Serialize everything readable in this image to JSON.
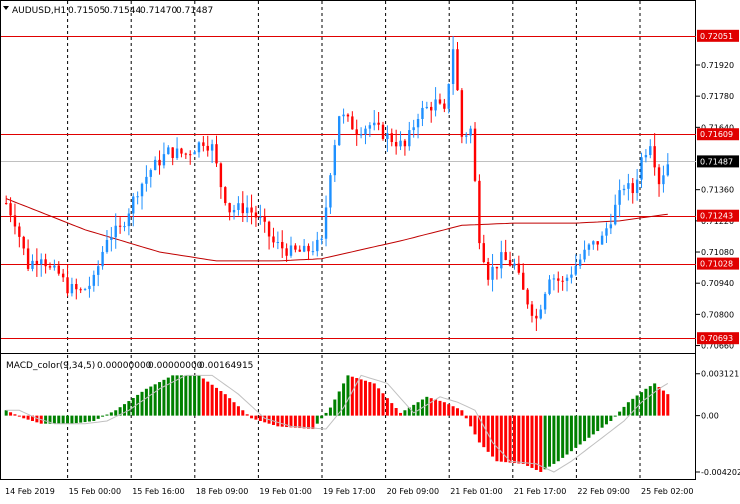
{
  "symbol_label": "AUDUSD,H1",
  "ohlc": {
    "open": "0.71505",
    "high": "0.71544",
    "low": "0.71470",
    "close": "0.71487"
  },
  "indicator": {
    "name": "MACD_color(9,34,5)",
    "v1": "0.00000000",
    "v2": "0.00000000",
    "v3": "0.00164915"
  },
  "price_axis": {
    "min": 0.7064,
    "max": 0.7214,
    "ticks": [
      {
        "value": 0.7192,
        "label": "0.71920"
      },
      {
        "value": 0.7178,
        "label": "0.71780"
      },
      {
        "value": 0.7164,
        "label": "0.71640"
      },
      {
        "value": 0.7136,
        "label": "0.71360"
      },
      {
        "value": 0.7122,
        "label": "0.71220"
      },
      {
        "value": 0.7108,
        "label": "0.71080"
      },
      {
        "value": 0.7094,
        "label": "0.70940"
      },
      {
        "value": 0.708,
        "label": "0.70800"
      },
      {
        "value": 0.7066,
        "label": "0.70660"
      }
    ]
  },
  "levels": [
    {
      "value": 0.72051,
      "label": "0.72051",
      "kind": "resistance"
    },
    {
      "value": 0.71609,
      "label": "0.71609",
      "kind": "resistance"
    },
    {
      "value": 0.71487,
      "label": "0.71487",
      "kind": "current"
    },
    {
      "value": 0.71243,
      "label": "0.71243",
      "kind": "support"
    },
    {
      "value": 0.71028,
      "label": "0.71028",
      "kind": "support"
    },
    {
      "value": 0.70693,
      "label": "0.70693",
      "kind": "support"
    }
  ],
  "macd_axis": {
    "min": -0.0045,
    "max": 0.0034,
    "ticks": [
      {
        "value": 0.003121,
        "label": "0.003121"
      },
      {
        "value": 0.0,
        "label": "0.00"
      },
      {
        "value": -0.004202,
        "label": "-0.004202"
      }
    ]
  },
  "time_labels": [
    "14 Feb 2019",
    "15 Feb 00:00",
    "15 Feb 16:00",
    "18 Feb 09:00",
    "19 Feb 01:00",
    "19 Feb 17:00",
    "20 Feb 09:00",
    "21 Feb 01:00",
    "21 Feb 17:00",
    "22 Feb 09:00",
    "25 Feb 02:00"
  ],
  "colors": {
    "bull": "#1e90ff",
    "bear": "#ff0000",
    "level_line": "#e00000",
    "ma_line": "#c00000",
    "macd_up": "#008000",
    "macd_down": "#ff0000",
    "grid": "#000000",
    "current_line": "#c0c0c0"
  },
  "chart_data": {
    "type": "candlestick",
    "moving_average_color": "#c00000",
    "close_path": [
      {
        "bar": 0,
        "price": 0.713
      },
      {
        "bar": 2,
        "price": 0.7122
      },
      {
        "bar": 5,
        "price": 0.7102
      },
      {
        "bar": 8,
        "price": 0.7107
      },
      {
        "bar": 10,
        "price": 0.71
      },
      {
        "bar": 12,
        "price": 0.7098
      },
      {
        "bar": 14,
        "price": 0.7092
      },
      {
        "bar": 17,
        "price": 0.709
      },
      {
        "bar": 20,
        "price": 0.7095
      },
      {
        "bar": 23,
        "price": 0.7115
      },
      {
        "bar": 26,
        "price": 0.7118
      },
      {
        "bar": 30,
        "price": 0.7136
      },
      {
        "bar": 33,
        "price": 0.7145
      },
      {
        "bar": 37,
        "price": 0.7153
      },
      {
        "bar": 41,
        "price": 0.7152
      },
      {
        "bar": 45,
        "price": 0.7158
      },
      {
        "bar": 47,
        "price": 0.7155
      },
      {
        "bar": 49,
        "price": 0.7138
      },
      {
        "bar": 51,
        "price": 0.7127
      },
      {
        "bar": 55,
        "price": 0.7128
      },
      {
        "bar": 58,
        "price": 0.7122
      },
      {
        "bar": 61,
        "price": 0.7112
      },
      {
        "bar": 65,
        "price": 0.7108
      },
      {
        "bar": 68,
        "price": 0.7108
      },
      {
        "bar": 70,
        "price": 0.711
      },
      {
        "bar": 72,
        "price": 0.7112
      },
      {
        "bar": 74,
        "price": 0.7145
      },
      {
        "bar": 76,
        "price": 0.717
      },
      {
        "bar": 80,
        "price": 0.7163
      },
      {
        "bar": 83,
        "price": 0.7165
      },
      {
        "bar": 87,
        "price": 0.716
      },
      {
        "bar": 91,
        "price": 0.7155
      },
      {
        "bar": 94,
        "price": 0.717
      },
      {
        "bar": 98,
        "price": 0.7175
      },
      {
        "bar": 100,
        "price": 0.717
      },
      {
        "bar": 102,
        "price": 0.72
      },
      {
        "bar": 104,
        "price": 0.716
      },
      {
        "bar": 106,
        "price": 0.7163
      },
      {
        "bar": 108,
        "price": 0.7115
      },
      {
        "bar": 110,
        "price": 0.7098
      },
      {
        "bar": 113,
        "price": 0.7105
      },
      {
        "bar": 116,
        "price": 0.7102
      },
      {
        "bar": 118,
        "price": 0.709
      },
      {
        "bar": 121,
        "price": 0.7078
      },
      {
        "bar": 124,
        "price": 0.7098
      },
      {
        "bar": 127,
        "price": 0.7094
      },
      {
        "bar": 130,
        "price": 0.7102
      },
      {
        "bar": 133,
        "price": 0.711
      },
      {
        "bar": 136,
        "price": 0.7114
      },
      {
        "bar": 139,
        "price": 0.7128
      },
      {
        "bar": 141,
        "price": 0.7138
      },
      {
        "bar": 143,
        "price": 0.7135
      },
      {
        "bar": 145,
        "price": 0.715
      },
      {
        "bar": 147,
        "price": 0.7158
      },
      {
        "bar": 149,
        "price": 0.714
      },
      {
        "bar": 151,
        "price": 0.7148
      }
    ],
    "moving_average": [
      {
        "bar": 0,
        "value": 0.7132
      },
      {
        "bar": 18,
        "value": 0.7118
      },
      {
        "bar": 35,
        "value": 0.7108
      },
      {
        "bar": 48,
        "value": 0.7104
      },
      {
        "bar": 62,
        "value": 0.7104
      },
      {
        "bar": 72,
        "value": 0.7105
      },
      {
        "bar": 90,
        "value": 0.7113
      },
      {
        "bar": 104,
        "value": 0.712
      },
      {
        "bar": 116,
        "value": 0.7121
      },
      {
        "bar": 130,
        "value": 0.7121
      },
      {
        "bar": 140,
        "value": 0.7122
      },
      {
        "bar": 151,
        "value": 0.7125
      }
    ],
    "macd_path": [
      {
        "bar": 0,
        "value": 0.0004
      },
      {
        "bar": 4,
        "value": -0.0002
      },
      {
        "bar": 8,
        "value": -0.0006
      },
      {
        "bar": 15,
        "value": -0.0006
      },
      {
        "bar": 20,
        "value": -0.0004
      },
      {
        "bar": 25,
        "value": 0.0004
      },
      {
        "bar": 32,
        "value": 0.002
      },
      {
        "bar": 38,
        "value": 0.003
      },
      {
        "bar": 44,
        "value": 0.003
      },
      {
        "bar": 50,
        "value": 0.0016
      },
      {
        "bar": 56,
        "value": -0.0002
      },
      {
        "bar": 62,
        "value": -0.0008
      },
      {
        "bar": 70,
        "value": -0.001
      },
      {
        "bar": 74,
        "value": 0.0006
      },
      {
        "bar": 78,
        "value": 0.003
      },
      {
        "bar": 84,
        "value": 0.0024
      },
      {
        "bar": 90,
        "value": 0.0002
      },
      {
        "bar": 96,
        "value": 0.0014
      },
      {
        "bar": 100,
        "value": 0.001
      },
      {
        "bar": 104,
        "value": 0.0004
      },
      {
        "bar": 108,
        "value": -0.002
      },
      {
        "bar": 112,
        "value": -0.0034
      },
      {
        "bar": 118,
        "value": -0.0036
      },
      {
        "bar": 122,
        "value": -0.0042
      },
      {
        "bar": 126,
        "value": -0.0034
      },
      {
        "bar": 130,
        "value": -0.0024
      },
      {
        "bar": 134,
        "value": -0.0014
      },
      {
        "bar": 138,
        "value": -0.0004
      },
      {
        "bar": 142,
        "value": 0.001
      },
      {
        "bar": 146,
        "value": 0.002
      },
      {
        "bar": 148,
        "value": 0.0024
      },
      {
        "bar": 151,
        "value": 0.0016
      }
    ]
  }
}
